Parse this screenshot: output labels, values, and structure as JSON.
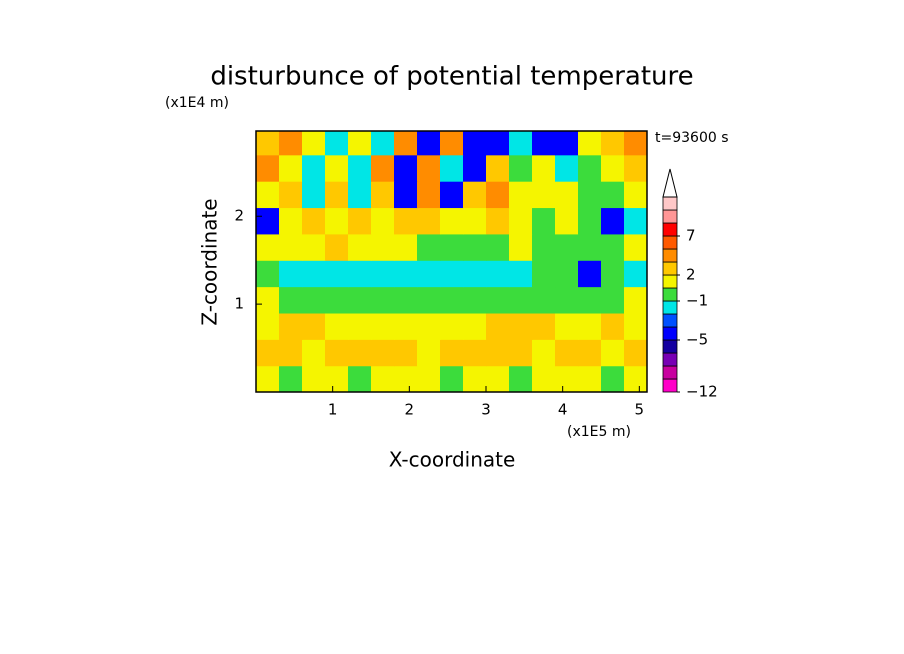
{
  "chart_data": {
    "type": "contour",
    "title": "disturbunce of potential temperature",
    "time_label": "t=93600 s",
    "x_label": "X-coordinate",
    "x_unit": "(x1E5 m)",
    "y_label": "Z-coordinate",
    "y_unit": "(x1E4 m)",
    "xlim": [
      0,
      5.1
    ],
    "ylim": [
      0,
      2.97
    ],
    "xticks": [
      1,
      2,
      3,
      4,
      5
    ],
    "yticks": [
      1,
      2
    ],
    "x": [
      0.15,
      0.45,
      0.75,
      1.05,
      1.35,
      1.65,
      1.95,
      2.25,
      2.55,
      2.85,
      3.15,
      3.45,
      3.75,
      4.05,
      4.35,
      4.65,
      4.95
    ],
    "y": [
      0.15,
      0.45,
      0.75,
      1.05,
      1.35,
      1.65,
      1.95,
      2.25,
      2.55,
      2.85
    ],
    "z": [
      [
        1,
        -0.5,
        1,
        1,
        -0.5,
        1,
        1,
        1,
        -0.5,
        1,
        1,
        -0.5,
        1,
        1,
        1,
        -0.5,
        1
      ],
      [
        2.5,
        2.5,
        1,
        2.5,
        2.5,
        2.5,
        2.5,
        1,
        2.5,
        2.5,
        2.5,
        2.5,
        1,
        2.5,
        2.5,
        1,
        2.5
      ],
      [
        1,
        2.5,
        2.5,
        1,
        1,
        1,
        1,
        1,
        1,
        1,
        2.5,
        2.5,
        2.5,
        1,
        1,
        2.5,
        1
      ],
      [
        1,
        -0.5,
        -0.5,
        -0.5,
        -0.5,
        -0.5,
        -0.5,
        -0.5,
        -0.5,
        -0.5,
        -0.5,
        -0.5,
        -0.5,
        -0.5,
        -0.5,
        -0.5,
        1
      ],
      [
        -0.5,
        -1.5,
        -1.5,
        -1.5,
        -1.5,
        -1.5,
        -1.5,
        -1.5,
        -1.5,
        -1.5,
        -1.5,
        -1.5,
        -0.5,
        -0.5,
        -4.5,
        -0.5,
        -1.5
      ],
      [
        1,
        1,
        1,
        2.5,
        1,
        1,
        1,
        -0.5,
        -0.5,
        -0.5,
        -0.5,
        1,
        -0.5,
        -0.5,
        -0.5,
        -0.5,
        1
      ],
      [
        -4.5,
        1,
        2.5,
        1,
        2.5,
        1,
        2.5,
        2.5,
        1,
        1,
        2.5,
        1,
        -0.5,
        1,
        -0.5,
        -4.5,
        -1.5
      ],
      [
        1,
        2.5,
        -1.5,
        2.5,
        -1.5,
        2.5,
        -4.5,
        4,
        -4.5,
        2.5,
        4,
        1,
        1,
        1,
        -0.5,
        -0.5,
        1
      ],
      [
        4,
        1,
        -1.5,
        1,
        -1.5,
        4,
        -4.5,
        4,
        -1.5,
        -4.5,
        2.5,
        -0.5,
        1,
        -1.5,
        -0.5,
        1,
        2.5
      ],
      [
        2.5,
        4,
        1,
        -1.5,
        1,
        -1.5,
        4,
        -4.5,
        4,
        -4.5,
        -4.5,
        -1.5,
        -4.5,
        -4.5,
        1,
        2.5,
        4
      ]
    ],
    "levels": [
      -12,
      -10,
      -8,
      -6,
      -5,
      -4,
      -2,
      -1,
      0,
      2,
      3,
      5,
      7,
      9,
      11,
      13
    ],
    "colors": [
      "#ff00c8",
      "#c800a0",
      "#7800b4",
      "#1400a0",
      "#0000ff",
      "#0050ff",
      "#00e6e6",
      "#3cdc3c",
      "#f5f500",
      "#ffc800",
      "#ff8c00",
      "#ff5a00",
      "#ff0000",
      "#ff9696",
      "#ffc8c8"
    ],
    "colorbar_ticks": [
      {
        "value": -12,
        "label": "−12"
      },
      {
        "value": -5,
        "label": "−5"
      },
      {
        "value": -1,
        "label": "−1"
      },
      2,
      7
    ]
  }
}
